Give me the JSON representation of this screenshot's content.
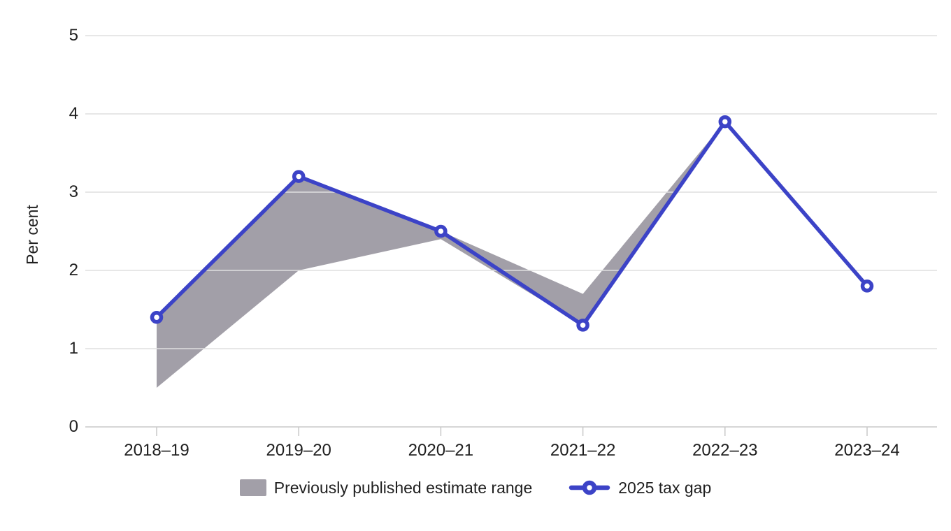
{
  "chart_data": {
    "type": "line",
    "title": "",
    "xlabel": "",
    "ylabel": "Per cent",
    "categories": [
      "2018–19",
      "2019–20",
      "2020–21",
      "2021–22",
      "2022–23",
      "2023–24"
    ],
    "yticks": [
      "0",
      "1",
      "2",
      "3",
      "4",
      "5"
    ],
    "ylim": [
      0,
      5
    ],
    "grid": true,
    "legend_position": "bottom",
    "series": [
      {
        "name": "Previously published estimate range",
        "type": "band",
        "x_indices": [
          0,
          1,
          2,
          3,
          4
        ],
        "upper": [
          1.4,
          3.2,
          2.5,
          1.7,
          3.9
        ],
        "lower": [
          0.5,
          2.0,
          2.4,
          1.3,
          3.9
        ],
        "color": "#a29fa8"
      },
      {
        "name": "2025 tax gap",
        "type": "line",
        "values": [
          1.4,
          3.2,
          2.5,
          1.3,
          3.9,
          1.8
        ],
        "color": "#3c43c7",
        "marker": "open-circle"
      }
    ]
  },
  "colors": {
    "background": "#ffffff",
    "gridline": "#dfdfdf",
    "axis": "#c8c8c8",
    "text": "#1f1f1f",
    "band": "#a29fa8",
    "line": "#3c43c7"
  }
}
